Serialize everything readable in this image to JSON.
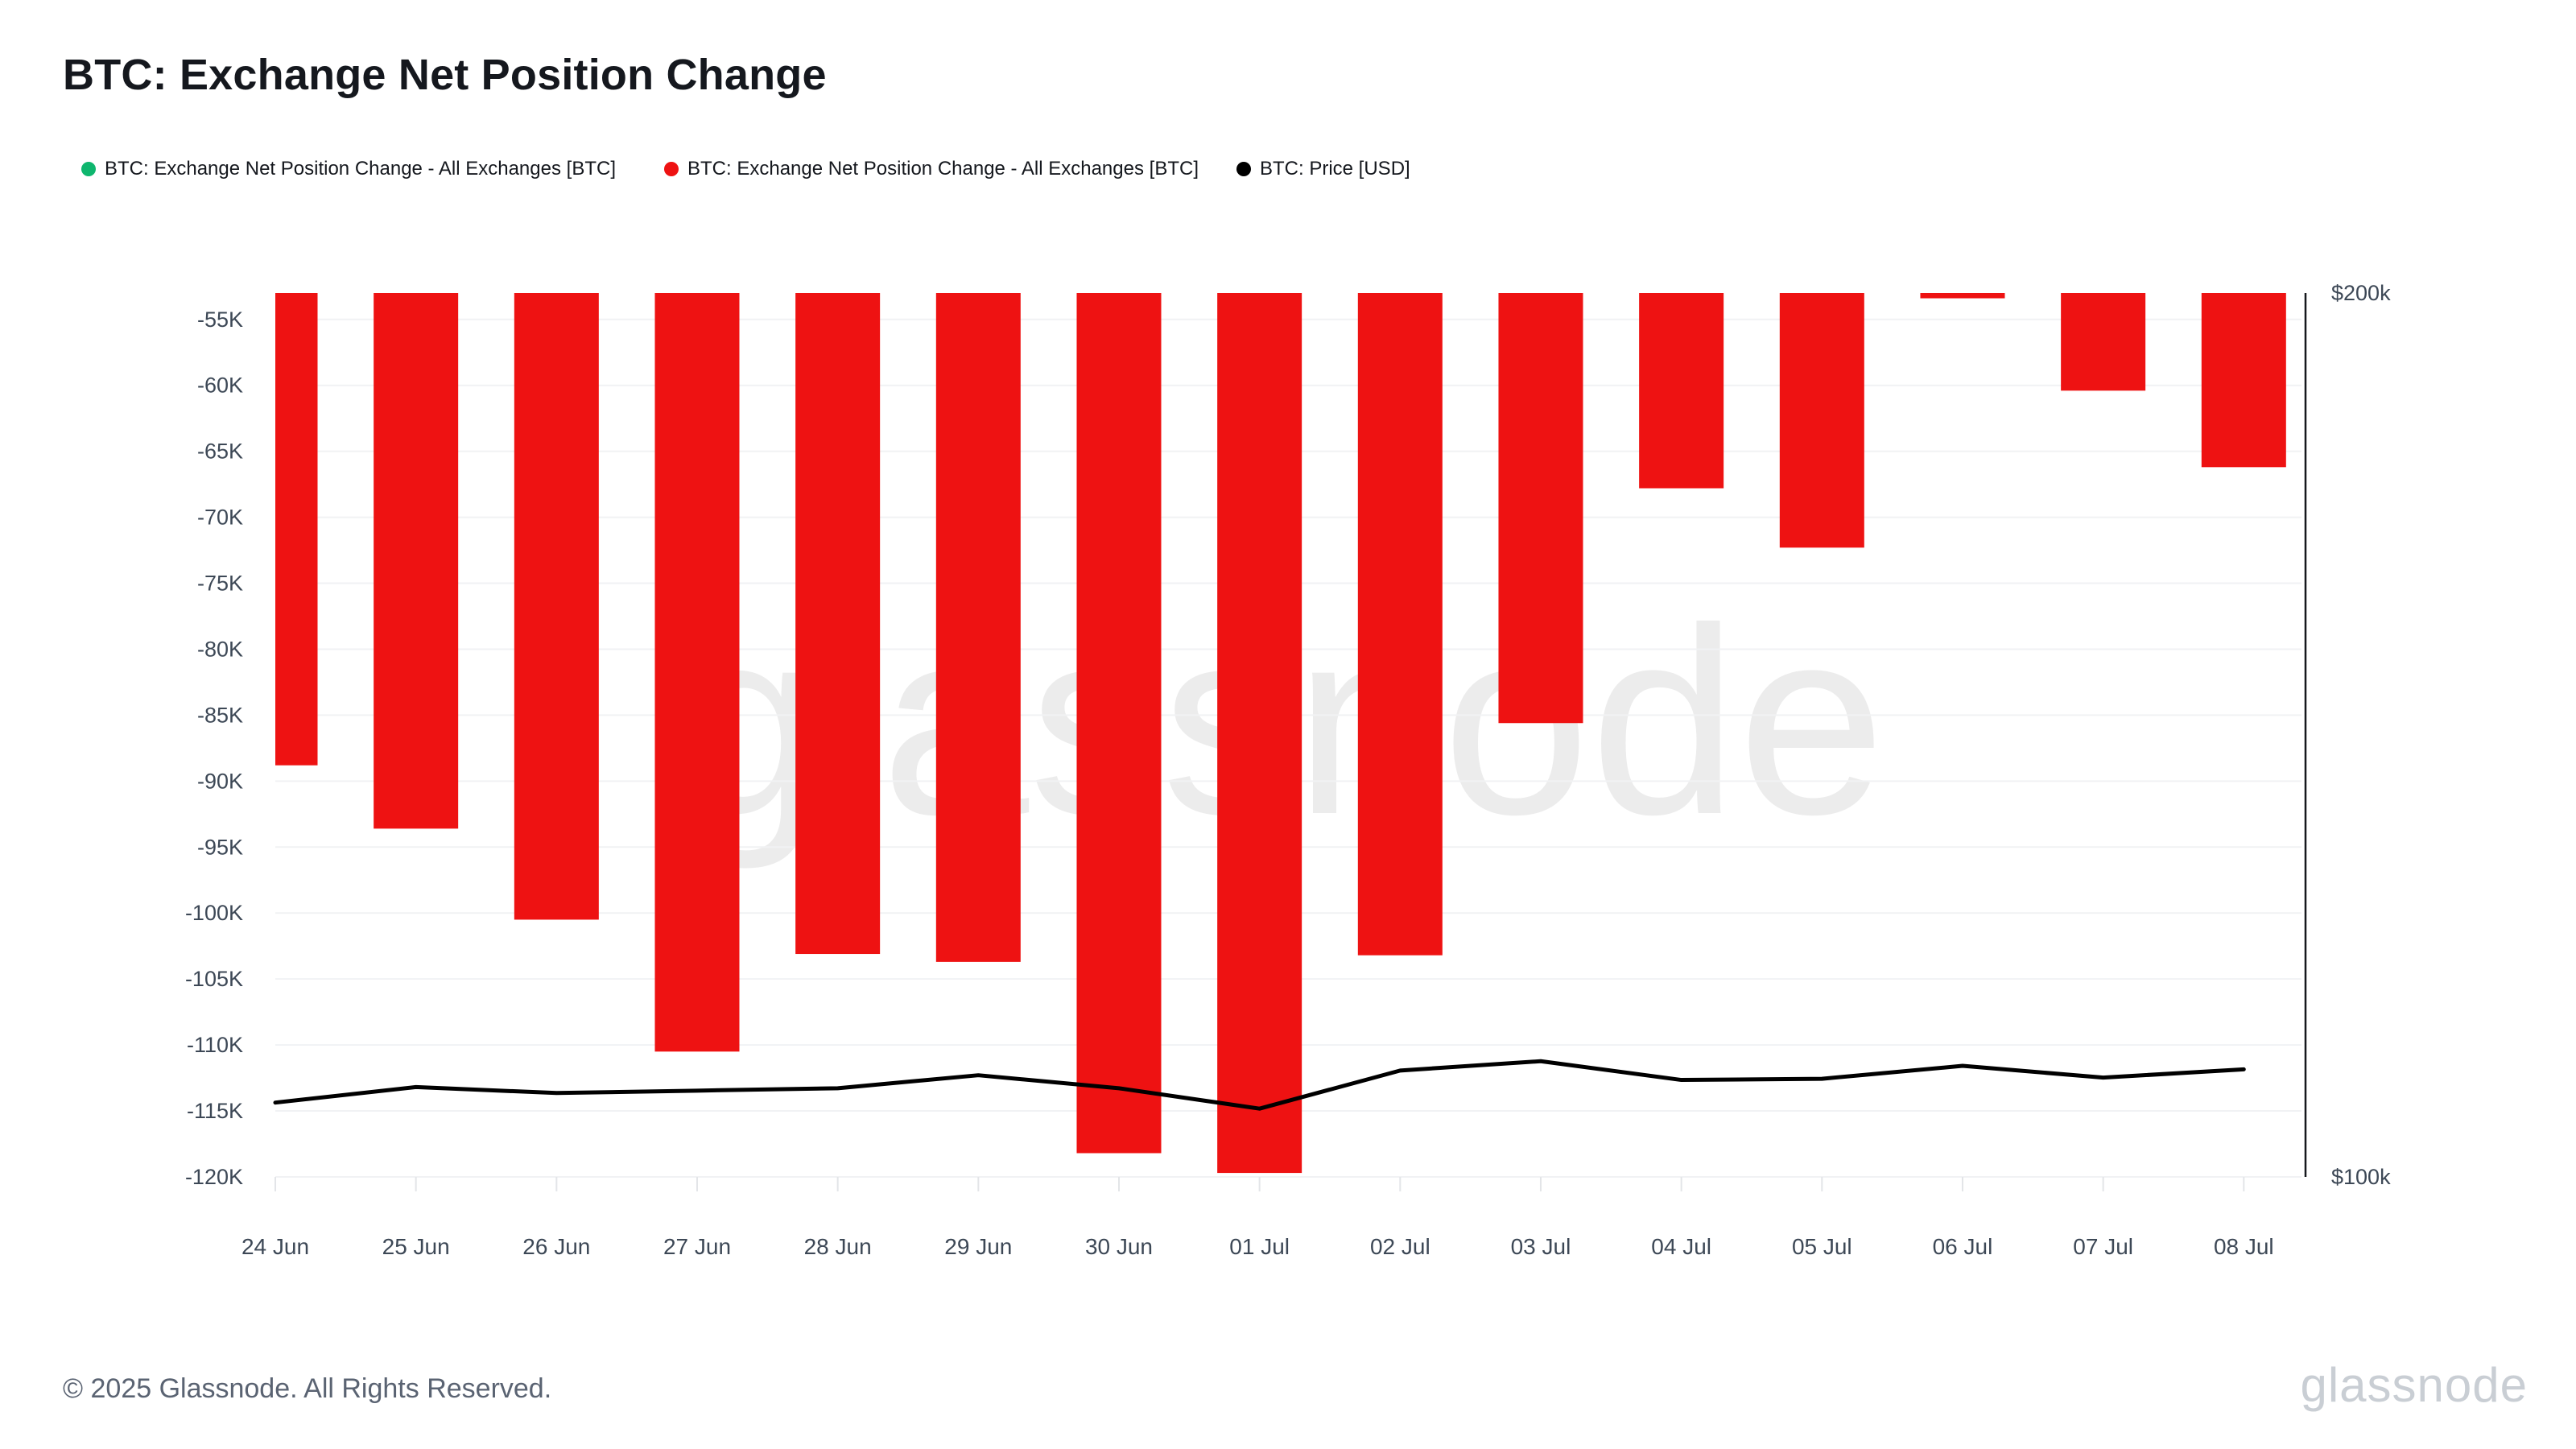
{
  "page": {
    "background": "#ffffff"
  },
  "header": {
    "title": "BTC: Exchange Net Position Change"
  },
  "legend": {
    "items": [
      {
        "label": "BTC: Exchange Net Position Change - All Exchanges [BTC]",
        "color": "#0eb66e",
        "marker": "dot-icon"
      },
      {
        "label": "BTC: Exchange Net Position Change - All Exchanges [BTC]",
        "color": "#ee1212",
        "marker": "dot-icon"
      },
      {
        "label": "BTC: Price [USD]",
        "color": "#000000",
        "marker": "dot-icon"
      }
    ]
  },
  "chart_data": {
    "type": "mixed",
    "title": "BTC: Exchange Net Position Change",
    "categories": [
      "24 Jun",
      "25 Jun",
      "26 Jun",
      "27 Jun",
      "28 Jun",
      "29 Jun",
      "30 Jun",
      "01 Jul",
      "02 Jul",
      "03 Jul",
      "04 Jul",
      "05 Jul",
      "06 Jul",
      "07 Jul",
      "08 Jul"
    ],
    "series": [
      {
        "name": "BTC: Exchange Net Position Change - All Exchanges [BTC]",
        "type": "bar",
        "color": "#ee1212",
        "axis": "left",
        "unit": "BTC",
        "values": [
          -88800,
          -93600,
          -100500,
          -110500,
          -103100,
          -103700,
          -118200,
          -119700,
          -103200,
          -85600,
          -67800,
          -72300,
          -53400,
          -60400,
          -66200
        ]
      },
      {
        "name": "BTC: Price [USD]",
        "type": "line",
        "color": "#000000",
        "axis": "right",
        "unit": "USD",
        "values": [
          106000,
          107300,
          106800,
          107000,
          107200,
          108300,
          107200,
          105500,
          108700,
          109500,
          107900,
          108000,
          109100,
          108100,
          108800
        ]
      }
    ],
    "y_axis_left": {
      "scale": "linear",
      "unit": "BTC",
      "top_value": -53000,
      "bottom_value": -120000,
      "tick_values": [
        -55000,
        -60000,
        -65000,
        -70000,
        -75000,
        -80000,
        -85000,
        -90000,
        -95000,
        -100000,
        -105000,
        -110000,
        -115000,
        -120000
      ],
      "tick_labels": [
        "-55K",
        "-60K",
        "-65K",
        "-70K",
        "-75K",
        "-80K",
        "-85K",
        "-90K",
        "-95K",
        "-100K",
        "-105K",
        "-110K",
        "-115K",
        "-120K"
      ]
    },
    "y_axis_right": {
      "scale": "log2",
      "unit": "USD",
      "top_value": 200000,
      "bottom_value": 100000,
      "tick_labels": [
        "$200k",
        "$100k"
      ]
    },
    "grid": "horizontal",
    "legend_position": "top",
    "watermark": "glassnode"
  },
  "footer": {
    "copyright": "© 2025 Glassnode. All Rights Reserved.",
    "brand": "glassnode"
  },
  "colors": {
    "bar_red": "#ee1212",
    "legend_green": "#0eb66e",
    "price_black": "#000000",
    "grid_line": "#f1f2f4",
    "axis_line": "#16181d",
    "axis_text": "#3d4856",
    "watermark": "#ececec",
    "tick_mark": "#e3e5e8"
  }
}
